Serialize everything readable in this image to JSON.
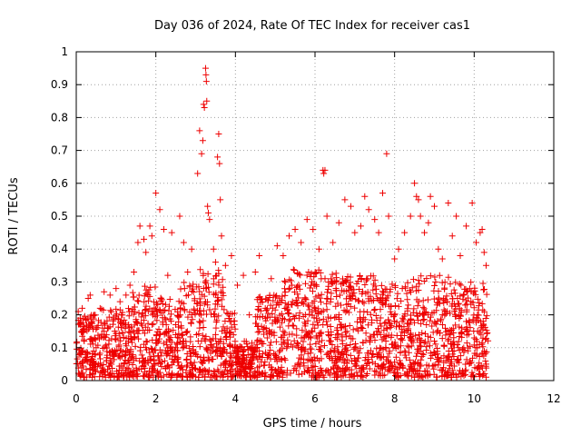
{
  "chart_data": {
    "type": "scatter",
    "title": "Day 036 of 2024, Rate Of TEC Index for receiver cas1",
    "xlabel": "GPS time / hours",
    "ylabel": "ROTI / TECUs",
    "xlim": [
      0,
      12
    ],
    "ylim": [
      0,
      1
    ],
    "x_ticks": [
      0,
      2,
      4,
      6,
      8,
      10,
      12
    ],
    "x_tick_labels": [
      "0",
      "2",
      "4",
      "6",
      "8",
      "10",
      "12"
    ],
    "y_ticks": [
      0,
      0.1,
      0.2,
      0.3,
      0.4,
      0.5,
      0.6,
      0.7,
      0.8,
      0.9,
      1
    ],
    "y_tick_labels": [
      "0",
      "0.1",
      "0.2",
      "0.3",
      "0.4",
      "0.5",
      "0.6",
      "0.7",
      "0.8",
      "0.9",
      "1"
    ],
    "grid": true,
    "marker": "+",
    "marker_color": "#ee0000",
    "series": [
      {
        "name": "ROTI",
        "points": [
          [
            0.05,
            0.21
          ],
          [
            0.1,
            0.19
          ],
          [
            0.15,
            0.22
          ],
          [
            0.2,
            0.16
          ],
          [
            0.3,
            0.25
          ],
          [
            0.35,
            0.26
          ],
          [
            0.45,
            0.2
          ],
          [
            0.6,
            0.22
          ],
          [
            0.7,
            0.27
          ],
          [
            0.85,
            0.26
          ],
          [
            1.0,
            0.28
          ],
          [
            1.1,
            0.24
          ],
          [
            1.25,
            0.26
          ],
          [
            1.35,
            0.29
          ],
          [
            1.45,
            0.33
          ],
          [
            1.55,
            0.42
          ],
          [
            1.6,
            0.47
          ],
          [
            1.7,
            0.43
          ],
          [
            1.75,
            0.39
          ],
          [
            1.85,
            0.47
          ],
          [
            1.9,
            0.44
          ],
          [
            2.0,
            0.57
          ],
          [
            2.1,
            0.52
          ],
          [
            2.2,
            0.46
          ],
          [
            2.3,
            0.32
          ],
          [
            2.4,
            0.45
          ],
          [
            2.6,
            0.5
          ],
          [
            2.7,
            0.42
          ],
          [
            2.8,
            0.33
          ],
          [
            2.9,
            0.4
          ],
          [
            3.05,
            0.63
          ],
          [
            3.1,
            0.76
          ],
          [
            3.15,
            0.69
          ],
          [
            3.18,
            0.73
          ],
          [
            3.2,
            0.84
          ],
          [
            3.22,
            0.83
          ],
          [
            3.25,
            0.95
          ],
          [
            3.26,
            0.93
          ],
          [
            3.27,
            0.91
          ],
          [
            3.28,
            0.85
          ],
          [
            3.3,
            0.53
          ],
          [
            3.32,
            0.51
          ],
          [
            3.35,
            0.49
          ],
          [
            3.45,
            0.4
          ],
          [
            3.5,
            0.36
          ],
          [
            3.55,
            0.68
          ],
          [
            3.58,
            0.75
          ],
          [
            3.6,
            0.66
          ],
          [
            3.62,
            0.55
          ],
          [
            3.65,
            0.44
          ],
          [
            3.75,
            0.35
          ],
          [
            3.9,
            0.38
          ],
          [
            4.05,
            0.29
          ],
          [
            4.2,
            0.32
          ],
          [
            4.35,
            0.2
          ],
          [
            4.5,
            0.33
          ],
          [
            4.6,
            0.38
          ],
          [
            4.75,
            0.22
          ],
          [
            4.9,
            0.31
          ],
          [
            5.05,
            0.41
          ],
          [
            5.2,
            0.38
          ],
          [
            5.35,
            0.44
          ],
          [
            5.5,
            0.46
          ],
          [
            5.65,
            0.42
          ],
          [
            5.8,
            0.49
          ],
          [
            5.95,
            0.46
          ],
          [
            6.1,
            0.4
          ],
          [
            6.2,
            0.64
          ],
          [
            6.22,
            0.63
          ],
          [
            6.25,
            0.64
          ],
          [
            6.3,
            0.5
          ],
          [
            6.45,
            0.42
          ],
          [
            6.6,
            0.48
          ],
          [
            6.75,
            0.55
          ],
          [
            6.9,
            0.53
          ],
          [
            7.0,
            0.45
          ],
          [
            7.15,
            0.47
          ],
          [
            7.25,
            0.56
          ],
          [
            7.35,
            0.52
          ],
          [
            7.5,
            0.49
          ],
          [
            7.6,
            0.45
          ],
          [
            7.7,
            0.57
          ],
          [
            7.8,
            0.69
          ],
          [
            7.85,
            0.5
          ],
          [
            8.0,
            0.37
          ],
          [
            8.1,
            0.4
          ],
          [
            8.25,
            0.45
          ],
          [
            8.4,
            0.5
          ],
          [
            8.5,
            0.6
          ],
          [
            8.55,
            0.56
          ],
          [
            8.6,
            0.55
          ],
          [
            8.65,
            0.5
          ],
          [
            8.75,
            0.45
          ],
          [
            8.85,
            0.48
          ],
          [
            8.9,
            0.56
          ],
          [
            9.0,
            0.53
          ],
          [
            9.1,
            0.4
          ],
          [
            9.2,
            0.37
          ],
          [
            9.35,
            0.54
          ],
          [
            9.45,
            0.44
          ],
          [
            9.55,
            0.5
          ],
          [
            9.65,
            0.38
          ],
          [
            9.8,
            0.47
          ],
          [
            9.95,
            0.54
          ],
          [
            10.05,
            0.42
          ],
          [
            10.15,
            0.45
          ],
          [
            10.2,
            0.46
          ],
          [
            10.25,
            0.39
          ],
          [
            10.3,
            0.35
          ],
          [
            0.1,
            0.08
          ],
          [
            0.2,
            0.12
          ],
          [
            0.4,
            0.05
          ],
          [
            0.5,
            0.1
          ],
          [
            0.7,
            0.15
          ],
          [
            0.9,
            0.09
          ],
          [
            1.1,
            0.13
          ],
          [
            1.3,
            0.06
          ],
          [
            1.5,
            0.18
          ],
          [
            1.7,
            0.11
          ],
          [
            1.9,
            0.21
          ],
          [
            2.1,
            0.14
          ],
          [
            2.3,
            0.09
          ],
          [
            2.5,
            0.17
          ],
          [
            2.7,
            0.12
          ],
          [
            2.9,
            0.2
          ],
          [
            3.1,
            0.16
          ],
          [
            3.3,
            0.23
          ],
          [
            3.5,
            0.14
          ],
          [
            3.7,
            0.1
          ],
          [
            3.9,
            0.07
          ],
          [
            4.0,
            0.03
          ],
          [
            4.1,
            0.02
          ],
          [
            4.2,
            0.04
          ],
          [
            4.3,
            0.02
          ],
          [
            4.4,
            0.06
          ],
          [
            4.6,
            0.09
          ],
          [
            4.8,
            0.13
          ],
          [
            5.0,
            0.08
          ],
          [
            5.2,
            0.15
          ],
          [
            5.4,
            0.11
          ],
          [
            5.6,
            0.19
          ],
          [
            5.8,
            0.14
          ],
          [
            6.0,
            0.22
          ],
          [
            6.2,
            0.17
          ],
          [
            6.4,
            0.12
          ],
          [
            6.6,
            0.2
          ],
          [
            6.8,
            0.15
          ],
          [
            7.0,
            0.1
          ],
          [
            7.2,
            0.18
          ],
          [
            7.4,
            0.13
          ],
          [
            7.6,
            0.08
          ],
          [
            7.8,
            0.16
          ],
          [
            8.0,
            0.11
          ],
          [
            8.2,
            0.19
          ],
          [
            8.4,
            0.14
          ],
          [
            8.6,
            0.09
          ],
          [
            8.8,
            0.17
          ],
          [
            9.0,
            0.12
          ],
          [
            9.2,
            0.2
          ],
          [
            9.4,
            0.15
          ],
          [
            9.6,
            0.1
          ],
          [
            9.8,
            0.18
          ],
          [
            10.0,
            0.13
          ],
          [
            10.2,
            0.08
          ],
          [
            10.3,
            0.05
          ]
        ]
      }
    ],
    "dense_bands": [
      {
        "x_from": 0.0,
        "x_to": 0.6,
        "y_max": 0.2
      },
      {
        "x_from": 0.6,
        "x_to": 1.4,
        "y_max": 0.22
      },
      {
        "x_from": 1.4,
        "x_to": 2.0,
        "y_max": 0.3
      },
      {
        "x_from": 2.0,
        "x_to": 2.6,
        "y_max": 0.26
      },
      {
        "x_from": 2.6,
        "x_to": 3.0,
        "y_max": 0.3
      },
      {
        "x_from": 3.0,
        "x_to": 3.7,
        "y_max": 0.34
      },
      {
        "x_from": 3.7,
        "x_to": 4.0,
        "y_max": 0.22
      },
      {
        "x_from": 4.0,
        "x_to": 4.5,
        "y_max": 0.12
      },
      {
        "x_from": 4.5,
        "x_to": 5.2,
        "y_max": 0.26
      },
      {
        "x_from": 5.2,
        "x_to": 6.6,
        "y_max": 0.34
      },
      {
        "x_from": 6.6,
        "x_to": 7.6,
        "y_max": 0.32
      },
      {
        "x_from": 7.6,
        "x_to": 8.4,
        "y_max": 0.3
      },
      {
        "x_from": 8.4,
        "x_to": 9.4,
        "y_max": 0.32
      },
      {
        "x_from": 9.4,
        "x_to": 10.35,
        "y_max": 0.3
      }
    ]
  }
}
